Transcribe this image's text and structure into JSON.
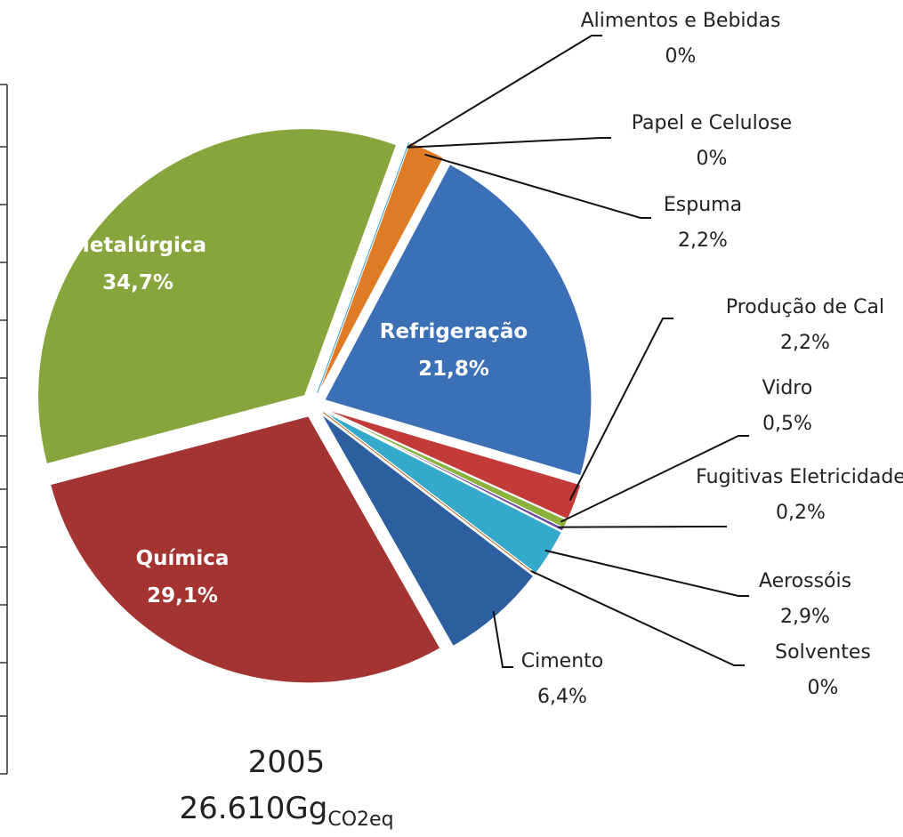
{
  "chart_data": {
    "type": "pie",
    "categories": [
      "Refrigeração",
      "Produção de Cal",
      "Vidro",
      "Fugitivas Eletricidade",
      "Aerossóis",
      "Solventes",
      "Cimento",
      "Química",
      "Metalúrgica",
      "Alimentos e Bebidas",
      "Papel e Celulose",
      "Espuma"
    ],
    "values": [
      21.8,
      2.2,
      0.5,
      0.2,
      2.9,
      0,
      6.4,
      29.1,
      34.7,
      0,
      0,
      2.2
    ],
    "value_labels": [
      "21,8%",
      "2,2%",
      "0,5%",
      "0,2%",
      "2,9%",
      "0%",
      "6,4%",
      "29,1%",
      "34,7%",
      "0%",
      "0%",
      "2,2%"
    ],
    "colors": [
      "#3b6fb6",
      "#c23b38",
      "#8cb13c",
      "#6b4c9a",
      "#35a9c9",
      "#b8641e",
      "#2d5e9f",
      "#a33432",
      "#86a63d",
      "#3b6fb6",
      "#35a9c9",
      "#e07b25"
    ],
    "year": "2005",
    "total": "26.610Gg",
    "total_unit": "CO2eq"
  }
}
